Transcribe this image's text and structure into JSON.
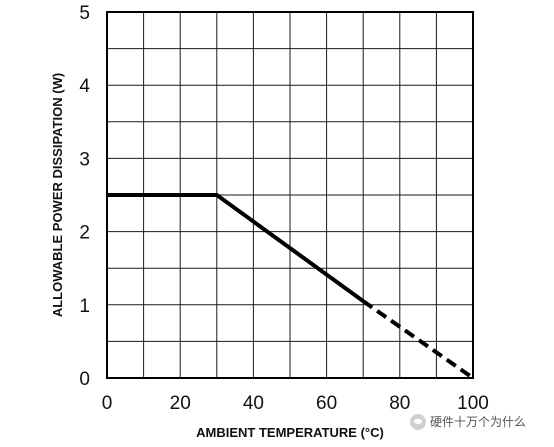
{
  "chart_data": {
    "type": "line",
    "xlabel": "AMBIENT TEMPERATURE (°C)",
    "ylabel": "ALLOWABLE POWER DISSIPATION (W)",
    "xlim": [
      0,
      100
    ],
    "ylim": [
      0,
      5
    ],
    "x_ticks": [
      0,
      20,
      40,
      60,
      80,
      100
    ],
    "y_ticks": [
      0,
      1,
      2,
      3,
      4,
      5
    ],
    "x_gridlines": [
      0,
      10,
      20,
      30,
      40,
      50,
      60,
      70,
      80,
      90,
      100
    ],
    "y_gridlines": [
      0,
      0.5,
      1,
      1.5,
      2,
      2.5,
      3,
      3.5,
      4,
      4.5,
      5
    ],
    "grid": true,
    "series": [
      {
        "style": "solid",
        "x": [
          0,
          30,
          70
        ],
        "y": [
          2.5,
          2.5,
          1.05
        ]
      },
      {
        "style": "dashed",
        "x": [
          70,
          100
        ],
        "y": [
          1.05,
          0
        ]
      }
    ],
    "line_color": "#000000",
    "grid_color": "#1a1a1a"
  },
  "watermark": {
    "icon": "wechat-icon",
    "text": "硬件十万个为什么"
  }
}
